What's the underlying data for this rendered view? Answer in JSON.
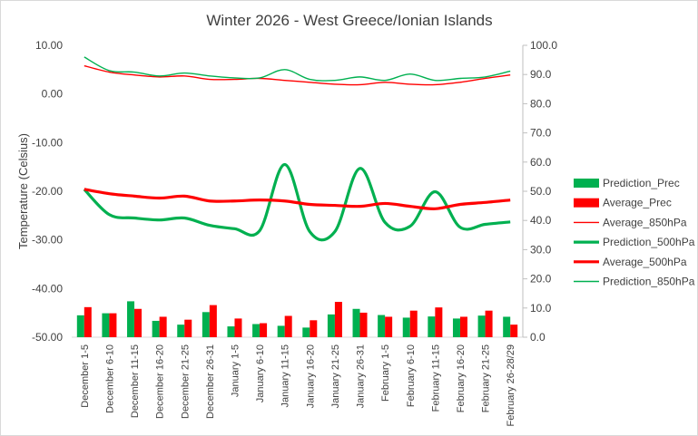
{
  "chart_data": {
    "type": "bar",
    "title": "Winter 2026 - West Greece/Ionian  Islands",
    "ylabel": "Temperature (Celsius)",
    "xlabel": "",
    "ylim": [
      -50,
      10
    ],
    "y2lim": [
      0,
      100
    ],
    "y_ticks": [
      "10.00",
      "0.00",
      "-10.00",
      "-20.00",
      "-30.00",
      "-40.00",
      "-50.00"
    ],
    "y2_ticks": [
      "100.0",
      "90.0",
      "80.0",
      "70.0",
      "60.0",
      "50.0",
      "40.0",
      "30.0",
      "20.0",
      "10.0",
      "0.0"
    ],
    "grid": false,
    "legend": "right",
    "categories": [
      "December 1-5",
      "December 6-10",
      "December 11-15",
      "December 16-20",
      "December 21-25",
      "December 26-31",
      "January 1-5",
      "January 6-10",
      "January 11-15",
      "January 16-20",
      "January 21-25",
      "January 26-31",
      "February 1-5",
      "February 6-10",
      "February 11-15",
      "February 16-20",
      "February 21-25",
      "February 26-28/29"
    ],
    "series": [
      {
        "name": "Prediction_Prec",
        "kind": "bar",
        "axis": "right",
        "color": "#00b050",
        "values": [
          7.5,
          8.2,
          12.3,
          5.6,
          4.3,
          8.6,
          3.7,
          4.5,
          3.9,
          3.3,
          7.8,
          9.7,
          7.6,
          6.7,
          7.1,
          6.4,
          7.4,
          7.0
        ]
      },
      {
        "name": "Average_Prec",
        "kind": "bar",
        "axis": "right",
        "color": "#ff0000",
        "values": [
          10.3,
          8.2,
          9.7,
          7.0,
          6.0,
          11.0,
          6.4,
          4.8,
          7.3,
          5.8,
          12.1,
          8.4,
          7.0,
          9.1,
          10.2,
          7.0,
          9.1,
          4.3
        ]
      },
      {
        "name": "Average_850hPa",
        "kind": "line",
        "axis": "left",
        "color": "#ff0000",
        "width": "thin",
        "values": [
          5.8,
          4.5,
          3.9,
          3.5,
          3.7,
          3.0,
          3.0,
          3.2,
          2.8,
          2.4,
          2.0,
          1.9,
          2.4,
          2.0,
          1.9,
          2.4,
          3.2,
          3.9
        ]
      },
      {
        "name": "Prediction_500hPa",
        "kind": "line",
        "axis": "left",
        "color": "#00b050",
        "width": "thick",
        "values": [
          -19.6,
          -24.8,
          -25.5,
          -25.9,
          -25.5,
          -27.0,
          -27.7,
          -28.1,
          -14.5,
          -28.3,
          -28.3,
          -15.3,
          -26.4,
          -27.2,
          -20.1,
          -27.4,
          -26.8,
          -26.3
        ]
      },
      {
        "name": "Average_500hPa",
        "kind": "line",
        "axis": "left",
        "color": "#ff0000",
        "width": "thick",
        "values": [
          -19.6,
          -20.5,
          -21.0,
          -21.4,
          -21.0,
          -22.0,
          -22.0,
          -21.8,
          -22.0,
          -22.7,
          -22.9,
          -23.1,
          -22.5,
          -23.1,
          -23.6,
          -22.7,
          -22.3,
          -21.8
        ]
      },
      {
        "name": "Prediction_850hPa",
        "kind": "line",
        "axis": "left",
        "color": "#00b050",
        "width": "thin",
        "values": [
          7.6,
          4.8,
          4.5,
          3.7,
          4.3,
          3.7,
          3.3,
          3.3,
          5.0,
          3.0,
          2.8,
          3.5,
          2.8,
          4.1,
          2.8,
          3.2,
          3.5,
          4.7
        ]
      }
    ]
  }
}
